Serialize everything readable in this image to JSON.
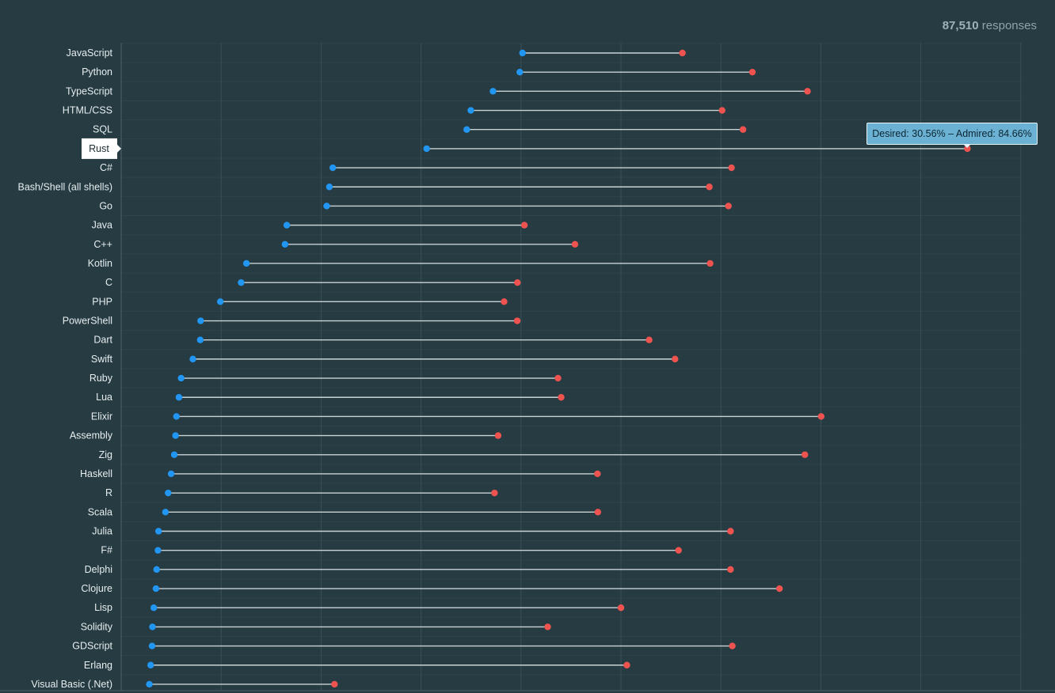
{
  "header": {
    "response_count": "87,510",
    "response_label": "responses"
  },
  "tooltip": {
    "text": "Desired: 30.56% – Admired: 84.66%",
    "language": "Rust"
  },
  "chart_data": {
    "type": "dumbbell",
    "title": "",
    "xlabel": "",
    "ylabel": "",
    "xlim": [
      0,
      90
    ],
    "grid": true,
    "selected": "Rust",
    "series": [
      {
        "name": "Desired",
        "color": "#2196f3"
      },
      {
        "name": "Admired",
        "color": "#ef5350"
      }
    ],
    "categories": [
      "JavaScript",
      "Python",
      "TypeScript",
      "HTML/CSS",
      "SQL",
      "Rust",
      "C#",
      "Bash/Shell (all shells)",
      "Go",
      "Java",
      "C++",
      "Kotlin",
      "C",
      "PHP",
      "PowerShell",
      "Dart",
      "Swift",
      "Ruby",
      "Lua",
      "Elixir",
      "Assembly",
      "Zig",
      "Haskell",
      "R",
      "Scala",
      "Julia",
      "F#",
      "Delphi",
      "Clojure",
      "Lisp",
      "Solidity",
      "GDScript",
      "Erlang",
      "Visual Basic (.Net)"
    ],
    "desired": [
      40.15,
      39.88,
      37.2,
      34.98,
      34.57,
      30.56,
      21.17,
      20.83,
      20.56,
      16.57,
      16.39,
      12.53,
      12.0,
      9.92,
      7.95,
      7.91,
      7.17,
      6.0,
      5.78,
      5.53,
      5.44,
      5.31,
      5.0,
      4.7,
      4.43,
      3.74,
      3.68,
      3.55,
      3.48,
      3.26,
      3.13,
      3.09,
      2.95,
      2.82
    ],
    "admired": [
      56.15,
      63.15,
      68.66,
      60.12,
      62.21,
      84.66,
      61.06,
      58.84,
      60.75,
      40.34,
      45.4,
      58.92,
      39.64,
      38.31,
      39.62,
      52.82,
      55.41,
      43.7,
      44.02,
      70.03,
      37.71,
      68.4,
      47.65,
      37.35,
      47.69,
      60.96,
      55.76,
      60.96,
      65.86,
      50.0,
      42.67,
      61.14,
      50.59,
      21.34
    ]
  }
}
